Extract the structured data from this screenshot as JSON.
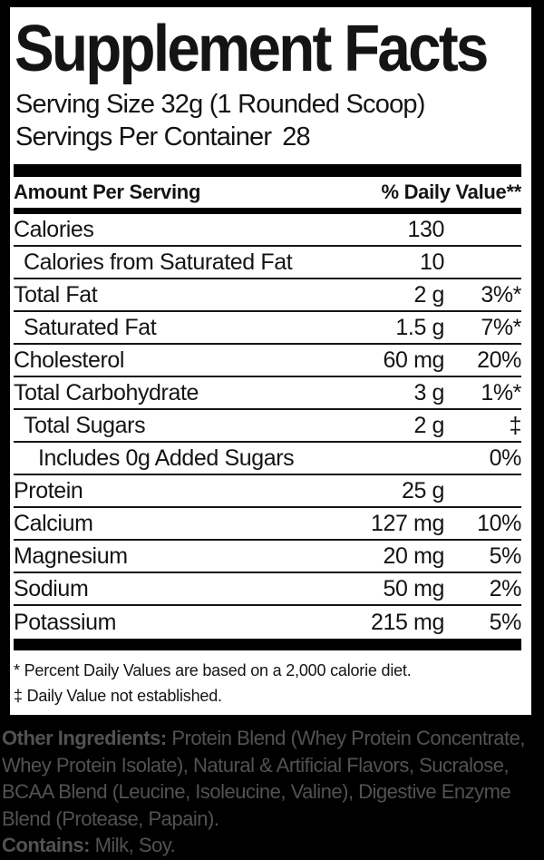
{
  "colors": {
    "background": "#000000",
    "panel": "#ffffff",
    "text": "#141414",
    "muted_text": "#525252"
  },
  "label": {
    "title": "Supplement Facts",
    "serving_size": "Serving Size 32g (1 Rounded Scoop)",
    "servings_per_container_label": "Servings Per Container",
    "servings_per_container_value": "28",
    "columns": {
      "amount": "Amount Per Serving",
      "daily_value": "% Daily Value**"
    },
    "rows": [
      {
        "name": "Calories",
        "amount": "130",
        "dv": ""
      },
      {
        "name": "Calories from Saturated Fat",
        "amount": "10",
        "dv": ""
      },
      {
        "name": "Total Fat",
        "amount": "2 g",
        "dv": "3%*"
      },
      {
        "name": "Saturated Fat",
        "amount": "1.5 g",
        "dv": "7%*"
      },
      {
        "name": "Cholesterol",
        "amount": "60 mg",
        "dv": "20%"
      },
      {
        "name": "Total Carbohydrate",
        "amount": "3 g",
        "dv": "1%*"
      },
      {
        "name": "Total Sugars",
        "amount": "2 g",
        "dv": "‡"
      },
      {
        "name": "Includes 0g Added Sugars",
        "amount": "",
        "dv": "0%"
      },
      {
        "name": "Protein",
        "amount": "25 g",
        "dv": ""
      },
      {
        "name": "Calcium",
        "amount": "127 mg",
        "dv": "10%"
      },
      {
        "name": "Magnesium",
        "amount": "20 mg",
        "dv": "5%"
      },
      {
        "name": "Sodium",
        "amount": "50 mg",
        "dv": "2%"
      },
      {
        "name": "Potassium",
        "amount": "215 mg",
        "dv": "5%"
      }
    ],
    "footnotes": [
      "* Percent Daily Values are based on a 2,000 calorie diet.",
      "‡ Daily Value not established."
    ]
  },
  "other_ingredients": {
    "label": "Other Ingredients:",
    "lines": [
      "Protein Blend (Whey Protein Concentrate,",
      "Whey Protein Isolate), Natural & Artificial Flavors, Sucralose,",
      "BCAA Blend (Leucine, Isoleucine, Valine), Digestive Enzyme",
      "Blend (Protease, Papain)."
    ],
    "contains_label": "Contains:",
    "contains_value": "Milk, Soy."
  }
}
